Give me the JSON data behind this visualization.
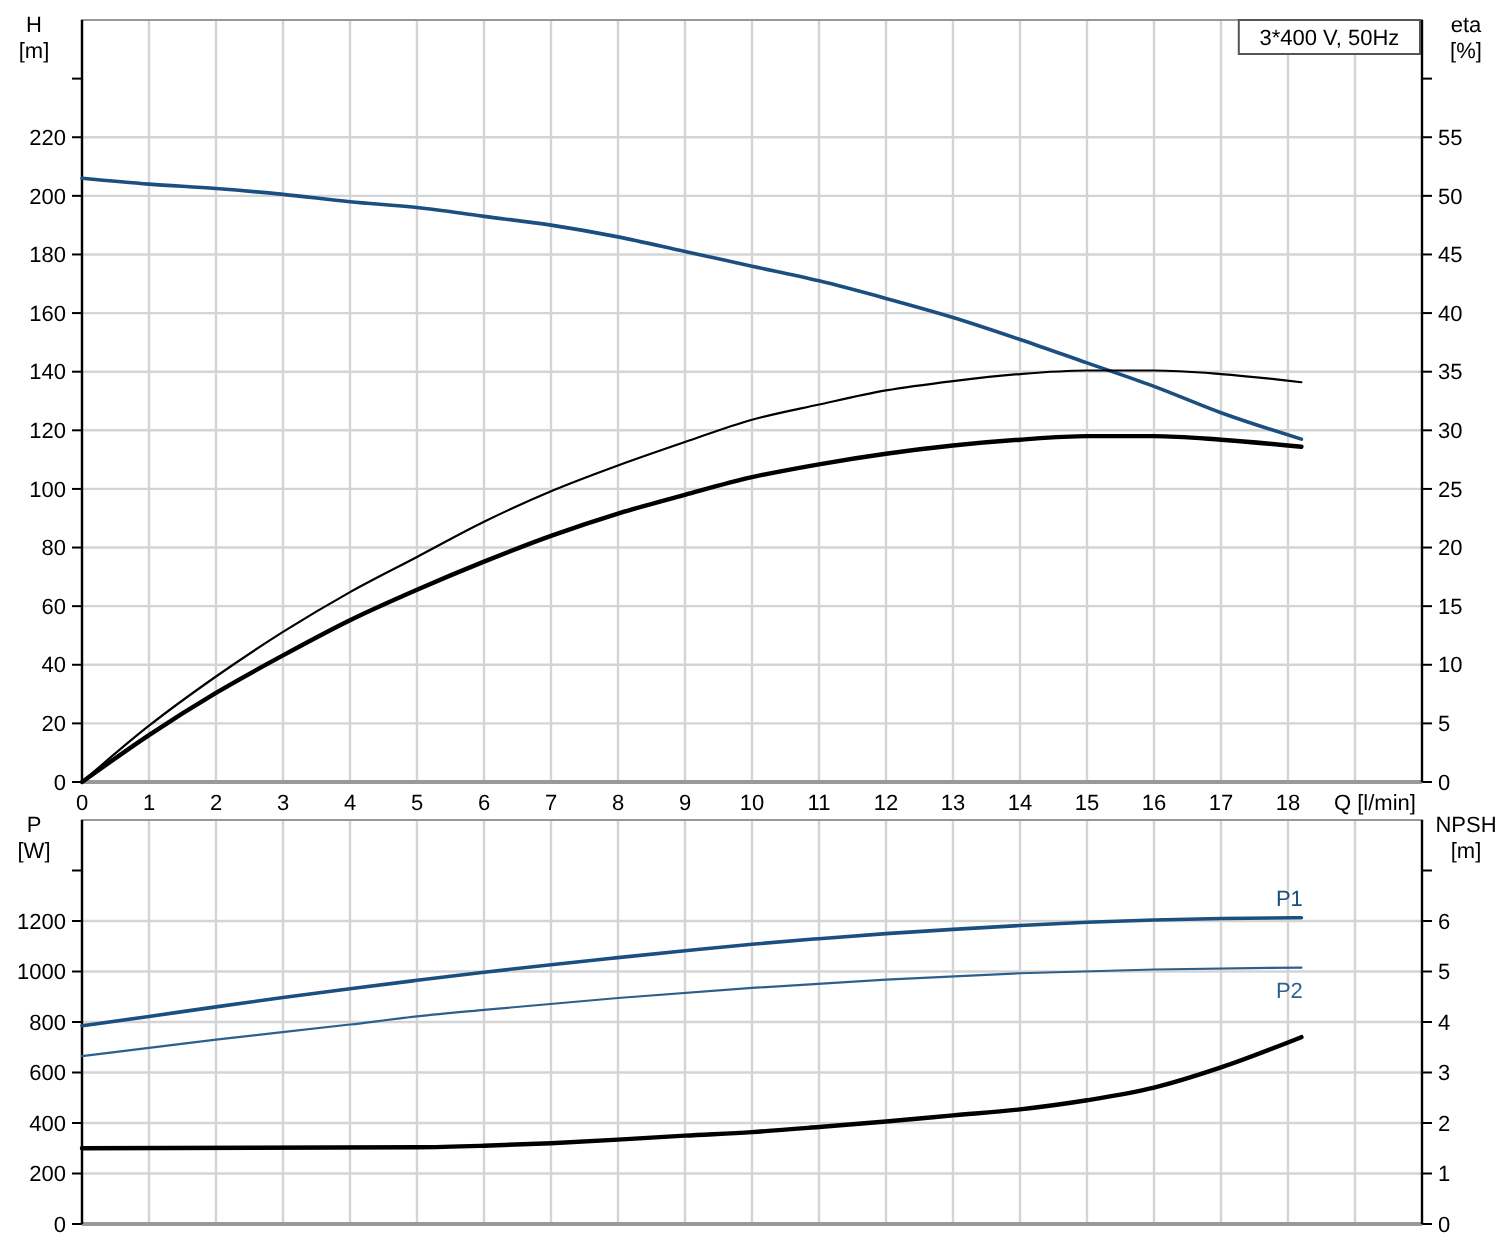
{
  "chart_data": [
    {
      "type": "line",
      "xlabel": "Q [l/min]",
      "ylabel": "H [m]",
      "y2label": "eta [%]",
      "annotations": [
        "3*400 V, 50Hz"
      ],
      "xlim": [
        0,
        20
      ],
      "xticks": [
        0,
        1,
        2,
        3,
        4,
        5,
        6,
        7,
        8,
        9,
        10,
        11,
        12,
        13,
        14,
        15,
        16,
        17,
        18,
        {
          "value": 19,
          "label": null
        }
      ],
      "ylim": [
        0,
        260
      ],
      "yticks": [
        0,
        20,
        40,
        60,
        80,
        100,
        120,
        140,
        160,
        180,
        200,
        220,
        {
          "value": 240,
          "label": null
        }
      ],
      "y2lim": [
        0,
        65
      ],
      "y2ticks": [
        0,
        5,
        10,
        15,
        20,
        25,
        30,
        35,
        40,
        45,
        50,
        55,
        {
          "value": 60,
          "label": null
        }
      ],
      "grid": true,
      "marker": "none",
      "line_style": "solid",
      "series": [
        {
          "color": "#1b4f80",
          "x": [
            0,
            1,
            2,
            3,
            4,
            5,
            6,
            7,
            8,
            9,
            10,
            11,
            12,
            13,
            14,
            15,
            16,
            17,
            18.2
          ],
          "values": [
            206,
            204,
            202.5,
            200.5,
            198,
            196,
            193,
            190,
            186,
            181,
            176,
            171,
            165,
            158.5,
            151,
            143,
            135,
            126,
            117
          ]
        },
        {
          "color": "#000000",
          "axis": "y2",
          "x": [
            0,
            1,
            2,
            3,
            4,
            5,
            6,
            7,
            8,
            9,
            10,
            11,
            12,
            13,
            14,
            15,
            16,
            17,
            18.2
          ],
          "values": [
            0,
            4.8,
            9,
            12.8,
            16.2,
            19.2,
            22.2,
            24.8,
            27,
            29,
            30.9,
            32.2,
            33.4,
            34.2,
            34.8,
            35.1,
            35.1,
            34.8,
            34.1
          ]
        },
        {
          "color": "#000000",
          "axis": "y2",
          "x": [
            0,
            1,
            2,
            3,
            4,
            5,
            6,
            7,
            8,
            9,
            10,
            11,
            12,
            13,
            14,
            15,
            16,
            17,
            18.2
          ],
          "values": [
            0,
            4,
            7.6,
            10.8,
            13.8,
            16.4,
            18.8,
            21,
            22.9,
            24.5,
            26,
            27.1,
            28,
            28.7,
            29.2,
            29.5,
            29.5,
            29.2,
            28.6
          ]
        }
      ]
    },
    {
      "type": "line",
      "ylabel": "P [W]",
      "y2label": "NPSH [m]",
      "tick_labels": "y",
      "xlim": [
        0,
        20
      ],
      "xticks": [
        0,
        1,
        2,
        3,
        4,
        5,
        6,
        7,
        8,
        9,
        10,
        11,
        12,
        13,
        14,
        15,
        16,
        17,
        18,
        19
      ],
      "ylim": [
        0,
        1600
      ],
      "yticks": [
        0,
        200,
        400,
        600,
        800,
        1000,
        1200,
        {
          "value": 1400,
          "label": null
        }
      ],
      "y2lim": [
        0,
        8
      ],
      "y2ticks": [
        0,
        1,
        2,
        3,
        4,
        5,
        6,
        {
          "value": 7,
          "label": null
        }
      ],
      "grid": true,
      "marker": "none",
      "line_style": "solid",
      "series": [
        {
          "name": "P1",
          "color": "#1b4f80",
          "x": [
            0,
            1,
            2,
            3,
            4,
            5,
            6,
            7,
            8,
            9,
            10,
            11,
            12,
            13,
            14,
            15,
            16,
            17,
            18.2
          ],
          "values": [
            785,
            822,
            860,
            897,
            932,
            965,
            997,
            1027,
            1055,
            1082,
            1108,
            1130,
            1150,
            1167,
            1182,
            1195,
            1204,
            1210,
            1213
          ]
        },
        {
          "name": "P2",
          "color": "#2d5f8c",
          "x": [
            0,
            2,
            4,
            5,
            6,
            8,
            10,
            12,
            14,
            16,
            18.2
          ],
          "values": [
            665,
            730,
            790,
            822,
            848,
            895,
            935,
            968,
            993,
            1008,
            1015
          ]
        },
        {
          "color": "#000000",
          "axis": "y2",
          "x": [
            0,
            5,
            6,
            7,
            8,
            9,
            10,
            11,
            12,
            13,
            14,
            15,
            16,
            17,
            18.2
          ],
          "values": [
            1.5,
            1.52,
            1.55,
            1.6,
            1.67,
            1.75,
            1.82,
            1.92,
            2.03,
            2.15,
            2.27,
            2.45,
            2.7,
            3.1,
            3.7
          ]
        }
      ]
    }
  ]
}
